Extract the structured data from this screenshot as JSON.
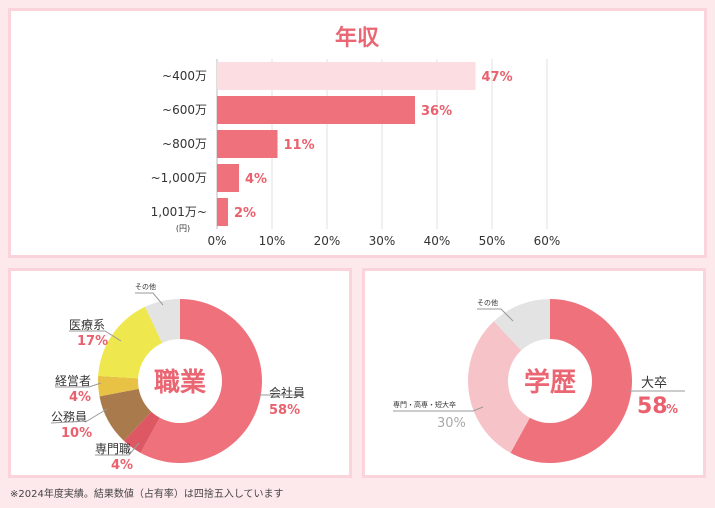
{
  "income": {
    "chart_data": {
      "type": "bar",
      "orientation": "horizontal",
      "title": "年収",
      "categories": [
        "~400万",
        "~600万",
        "~800万",
        "~1,000万",
        "1,001万~"
      ],
      "values": [
        47,
        36,
        11,
        4,
        2
      ],
      "value_labels": [
        "47%",
        "36%",
        "11%",
        "4%",
        "2%"
      ],
      "unit_note": "(円)",
      "xlim": [
        0,
        60
      ],
      "xticks": [
        "0%",
        "10%",
        "20%",
        "30%",
        "40%",
        "50%",
        "60%"
      ],
      "grid": true,
      "colors": {
        "highlight": "#fbdde2",
        "bar": "#ee717c",
        "label": "#e9616e"
      }
    }
  },
  "job": {
    "chart_data": {
      "type": "pie",
      "title": "職業",
      "slices": [
        {
          "name": "会社員",
          "value": 58,
          "label": "58%",
          "color": "#ee717c"
        },
        {
          "name": "専門職",
          "value": 4,
          "label": "4%",
          "color": "#dd5863"
        },
        {
          "name": "公務員",
          "value": 10,
          "label": "10%",
          "color": "#a87a4c"
        },
        {
          "name": "経営者",
          "value": 4,
          "label": "4%",
          "color": "#e7c244"
        },
        {
          "name": "医療系",
          "value": 17,
          "label": "17%",
          "color": "#eee74d"
        },
        {
          "name": "その他",
          "value": 7,
          "label": "",
          "color": "#e3e3e3"
        }
      ]
    }
  },
  "edu": {
    "chart_data": {
      "type": "pie",
      "title": "学歴",
      "slices": [
        {
          "name": "大卒",
          "value": 58,
          "label": "58",
          "unit": "%",
          "color": "#ee717c"
        },
        {
          "name": "専門・高専・短大卒",
          "value": 30,
          "label": "30%",
          "color": "#f6c3c8"
        },
        {
          "name": "その他",
          "value": 12,
          "label": "",
          "color": "#e3e3e3"
        }
      ]
    }
  },
  "footnote": "※2024年度実績。結果数値（占有率）は四捨五入しています"
}
